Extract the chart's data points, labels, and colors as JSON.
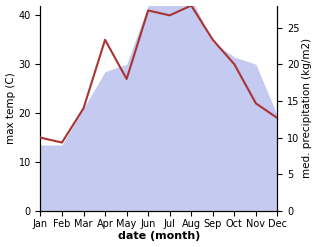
{
  "months": [
    "Jan",
    "Feb",
    "Mar",
    "Apr",
    "May",
    "Jun",
    "Jul",
    "Aug",
    "Sep",
    "Oct",
    "Nov",
    "Dec"
  ],
  "temp": [
    15,
    14,
    21,
    35,
    27,
    41,
    40,
    42,
    35,
    30,
    22,
    19
  ],
  "precip": [
    9,
    9,
    14,
    19,
    20,
    28,
    29,
    29,
    23,
    21,
    20,
    13
  ],
  "temp_color": "#aa3333",
  "precip_fill_color": "#c5caf0",
  "title": "",
  "xlabel": "date (month)",
  "ylabel_left": "max temp (C)",
  "ylabel_right": "med. precipitation (kg/m2)",
  "ylim_left": [
    0,
    42
  ],
  "ylim_right": [
    0,
    28
  ],
  "yticks_left": [
    0,
    10,
    20,
    30,
    40
  ],
  "yticks_right": [
    0,
    5,
    10,
    15,
    20,
    25
  ],
  "background_color": "#ffffff",
  "xlabel_fontsize": 8,
  "ylabel_fontsize": 7.5,
  "tick_fontsize": 7
}
